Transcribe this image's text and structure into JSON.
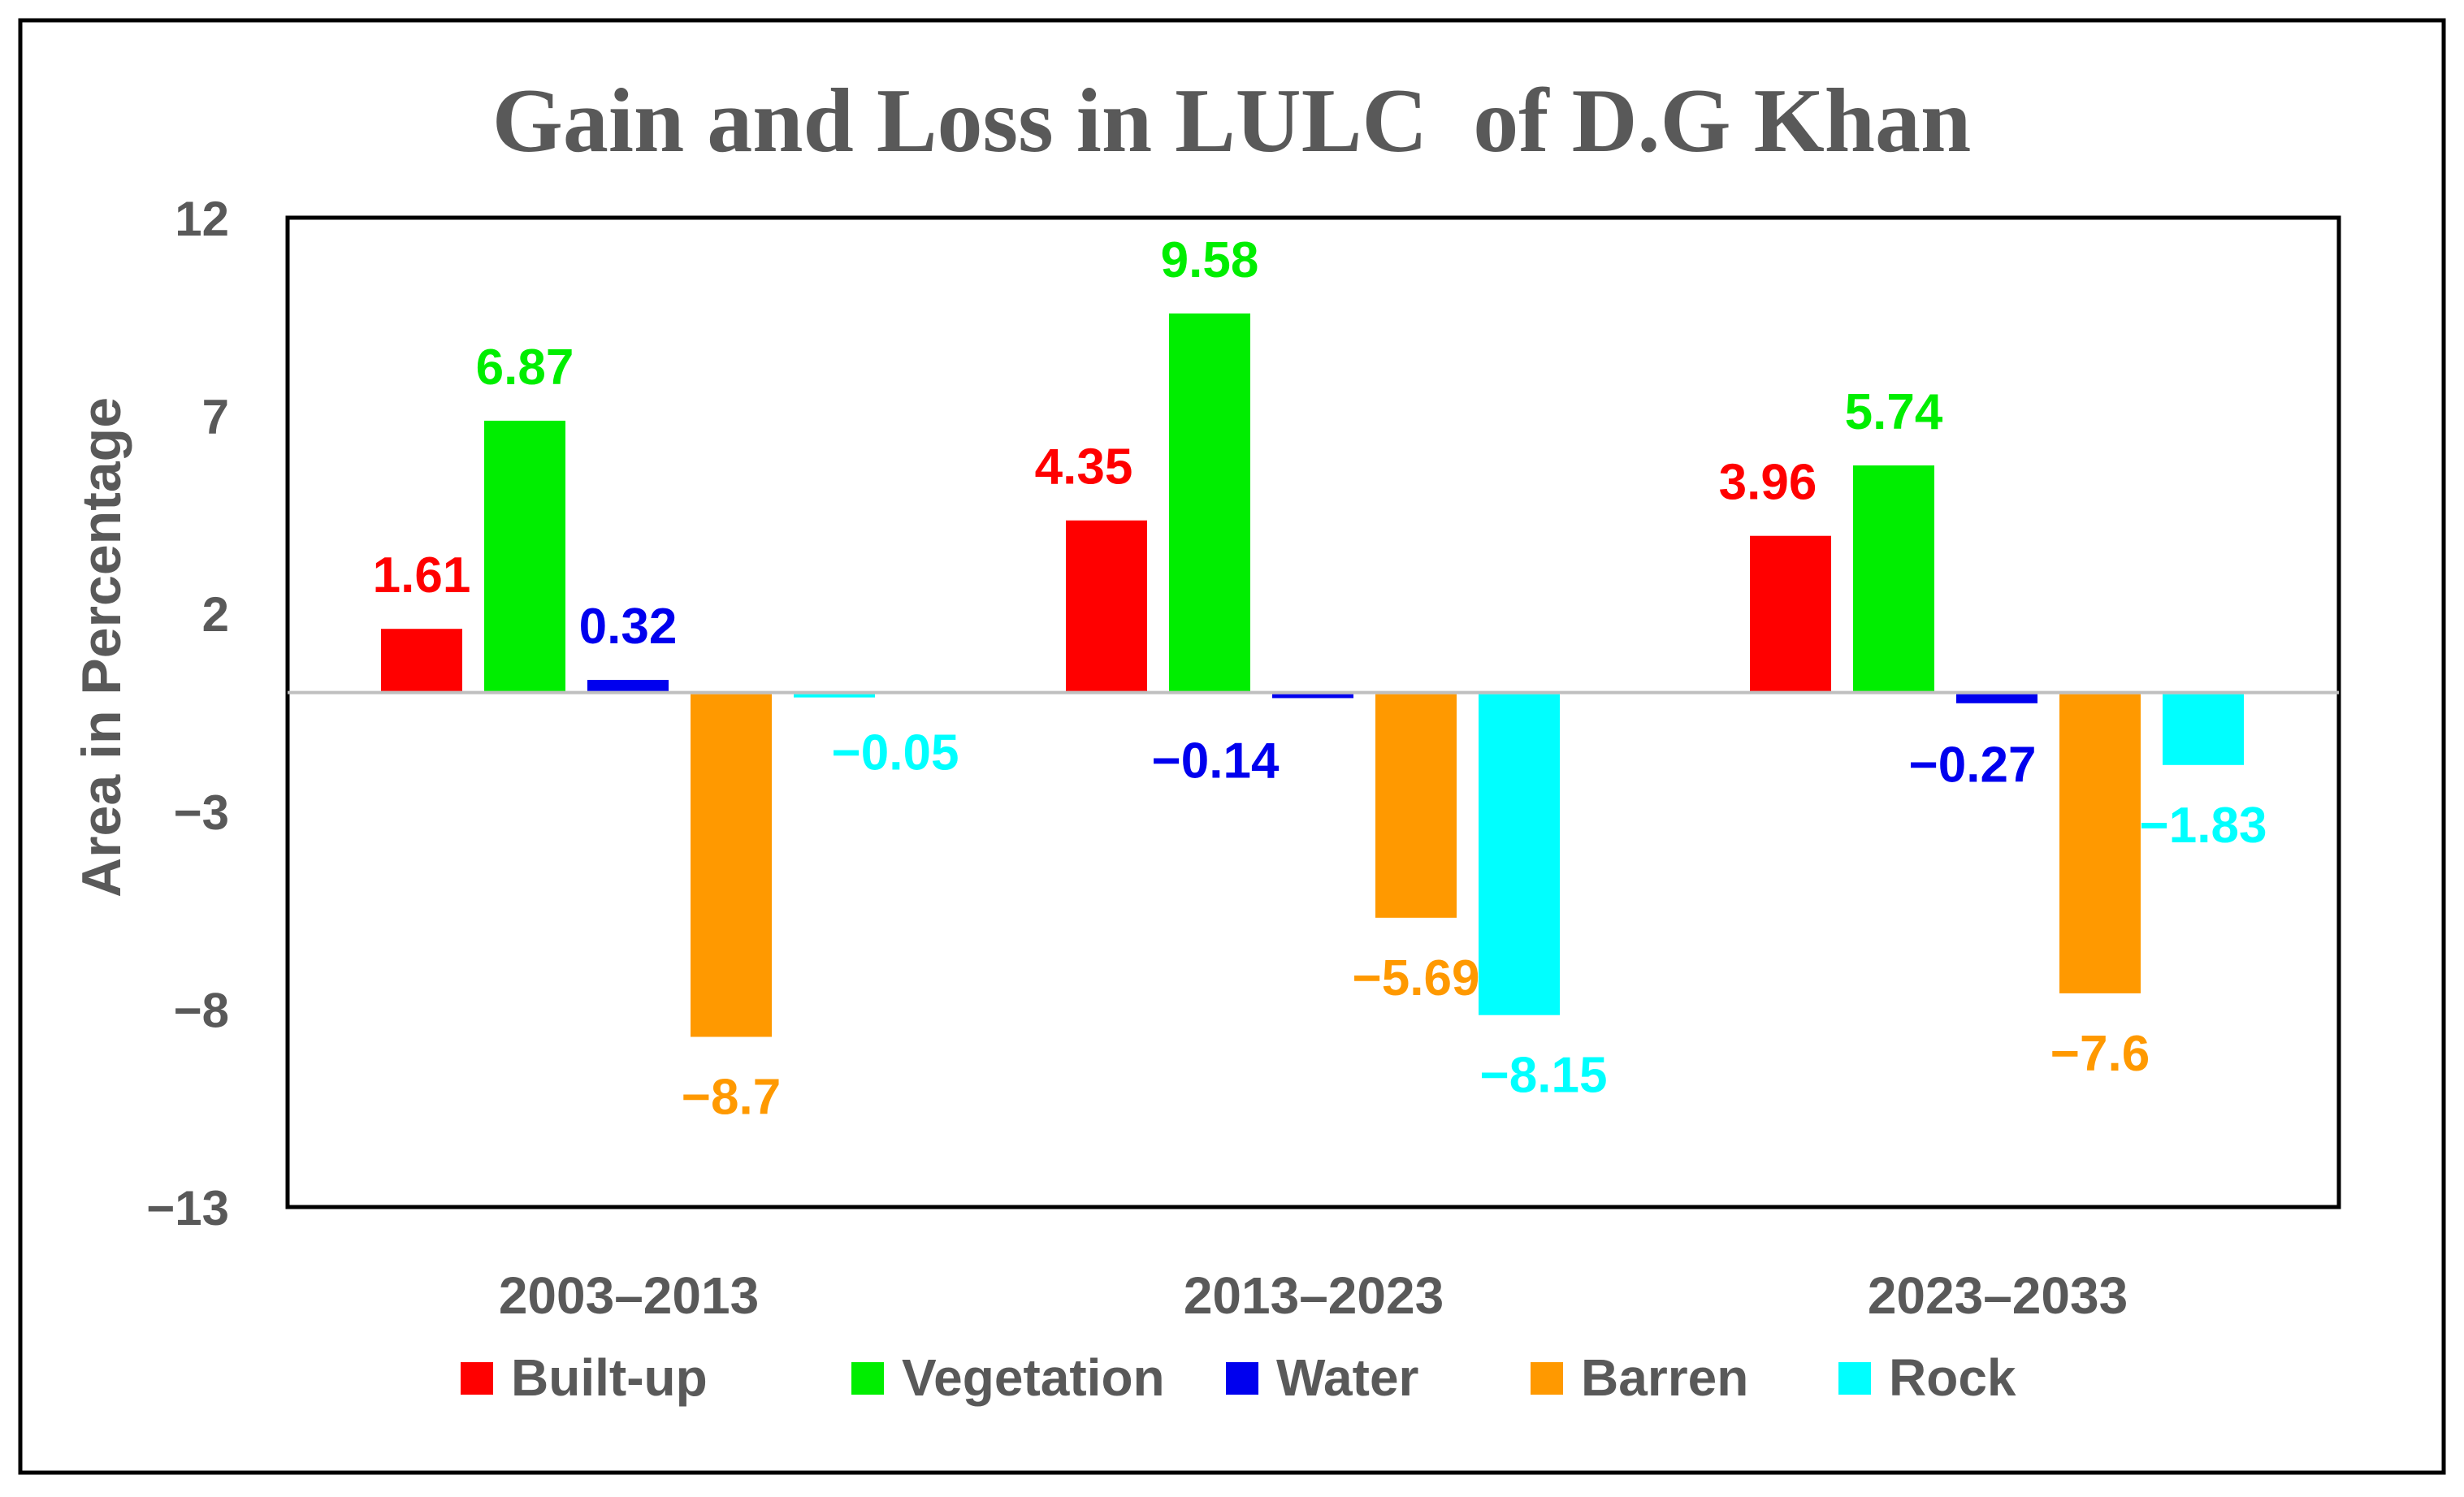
{
  "chart_data": {
    "type": "bar",
    "title": "Gain and Loss in LULC  of D.G Khan",
    "xlabel": "",
    "ylabel": "Area in Percentage",
    "ylim": [
      -13,
      12
    ],
    "yticks": [
      12,
      7,
      2,
      -3,
      -8,
      -13
    ],
    "ytick_labels": [
      "12",
      "7",
      "2",
      "−3",
      "−8",
      "−13"
    ],
    "categories": [
      "2003–2013",
      "2013–2023",
      "2023–2033"
    ],
    "series": [
      {
        "name": "Built-up",
        "color": "#ff0000",
        "values": [
          1.61,
          4.35,
          3.96
        ],
        "labels": [
          "1.61",
          "4.35",
          "3.96"
        ]
      },
      {
        "name": "Vegetation",
        "color": "#00ee00",
        "values": [
          6.87,
          9.58,
          5.74
        ],
        "labels": [
          "6.87",
          "9.58",
          "5.74"
        ]
      },
      {
        "name": "Water",
        "color": "#0000ee",
        "values": [
          0.32,
          -0.14,
          -0.27
        ],
        "labels": [
          "0.32",
          "−0.14",
          "−0.27"
        ]
      },
      {
        "name": "Barren",
        "color": "#ff9900",
        "values": [
          -8.7,
          -5.69,
          -7.6
        ],
        "labels": [
          "−8.7",
          "−5.69",
          "−7.6"
        ]
      },
      {
        "name": "Rock",
        "color": "#00ffff",
        "values": [
          -0.05,
          -8.15,
          -1.83
        ],
        "labels": [
          "−0.05",
          "−8.15",
          "−1.83"
        ]
      }
    ],
    "legend_position": "bottom",
    "grid": false
  }
}
